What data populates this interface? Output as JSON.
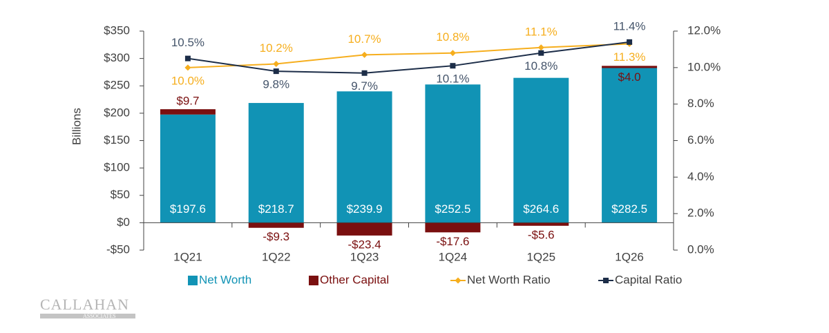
{
  "chart_data": {
    "type": "combo",
    "stacked": true,
    "y_axis_label": "Billions",
    "categories": [
      "1Q21",
      "1Q22",
      "1Q23",
      "1Q24",
      "1Q25",
      "1Q26"
    ],
    "series": [
      {
        "name": "Net Worth",
        "type": "bar",
        "color": "#1193b5",
        "values": [
          197.6,
          218.7,
          239.9,
          252.5,
          264.6,
          282.5
        ],
        "value_labels": [
          "$197.6",
          "$218.7",
          "$239.9",
          "$252.5",
          "$264.6",
          "$282.5"
        ]
      },
      {
        "name": "Other Capital",
        "type": "bar",
        "color": "#7a0f0f",
        "values": [
          9.7,
          -9.3,
          -23.4,
          -17.6,
          -5.6,
          4.0
        ],
        "value_labels": [
          "$9.7",
          "-$9.3",
          "-$23.4",
          "-$17.6",
          "-$5.6",
          "$4.0"
        ]
      },
      {
        "name": "Net Worth Ratio",
        "type": "line",
        "axis": "y2",
        "color": "#f6ae1d",
        "marker": "diamond",
        "values": [
          10.0,
          10.2,
          10.7,
          10.8,
          11.1,
          11.3
        ],
        "value_labels": [
          "10.0%",
          "10.2%",
          "10.7%",
          "10.8%",
          "11.1%",
          "11.3%"
        ]
      },
      {
        "name": "Capital Ratio",
        "type": "line",
        "axis": "y2",
        "color": "#1c2d48",
        "marker": "square",
        "values": [
          10.5,
          9.8,
          9.7,
          10.1,
          10.8,
          11.4
        ],
        "value_labels": [
          "10.5%",
          "9.8%",
          "9.7%",
          "10.1%",
          "10.8%",
          "11.4%"
        ]
      }
    ],
    "ylim": [
      -50,
      350
    ],
    "yticks": [
      {
        "value": -50,
        "label": "-$50"
      },
      {
        "value": 0,
        "label": "$0"
      },
      {
        "value": 50,
        "label": "$50"
      },
      {
        "value": 100,
        "label": "$100"
      },
      {
        "value": 150,
        "label": "$150"
      },
      {
        "value": 200,
        "label": "$200"
      },
      {
        "value": 250,
        "label": "$250"
      },
      {
        "value": 300,
        "label": "$300"
      },
      {
        "value": 350,
        "label": "$350"
      }
    ],
    "y2lim": [
      0,
      12
    ],
    "y2ticks": [
      {
        "value": 0,
        "label": "0.0%"
      },
      {
        "value": 2,
        "label": "2.0%"
      },
      {
        "value": 4,
        "label": "4.0%"
      },
      {
        "value": 6,
        "label": "6.0%"
      },
      {
        "value": 8,
        "label": "8.0%"
      },
      {
        "value": 10,
        "label": "10.0%"
      },
      {
        "value": 12,
        "label": "12.0%"
      }
    ],
    "grid": false,
    "legend": "bottom"
  },
  "logo": {
    "name": "CALLAHAN",
    "tagline": "ASSOCIATES"
  }
}
